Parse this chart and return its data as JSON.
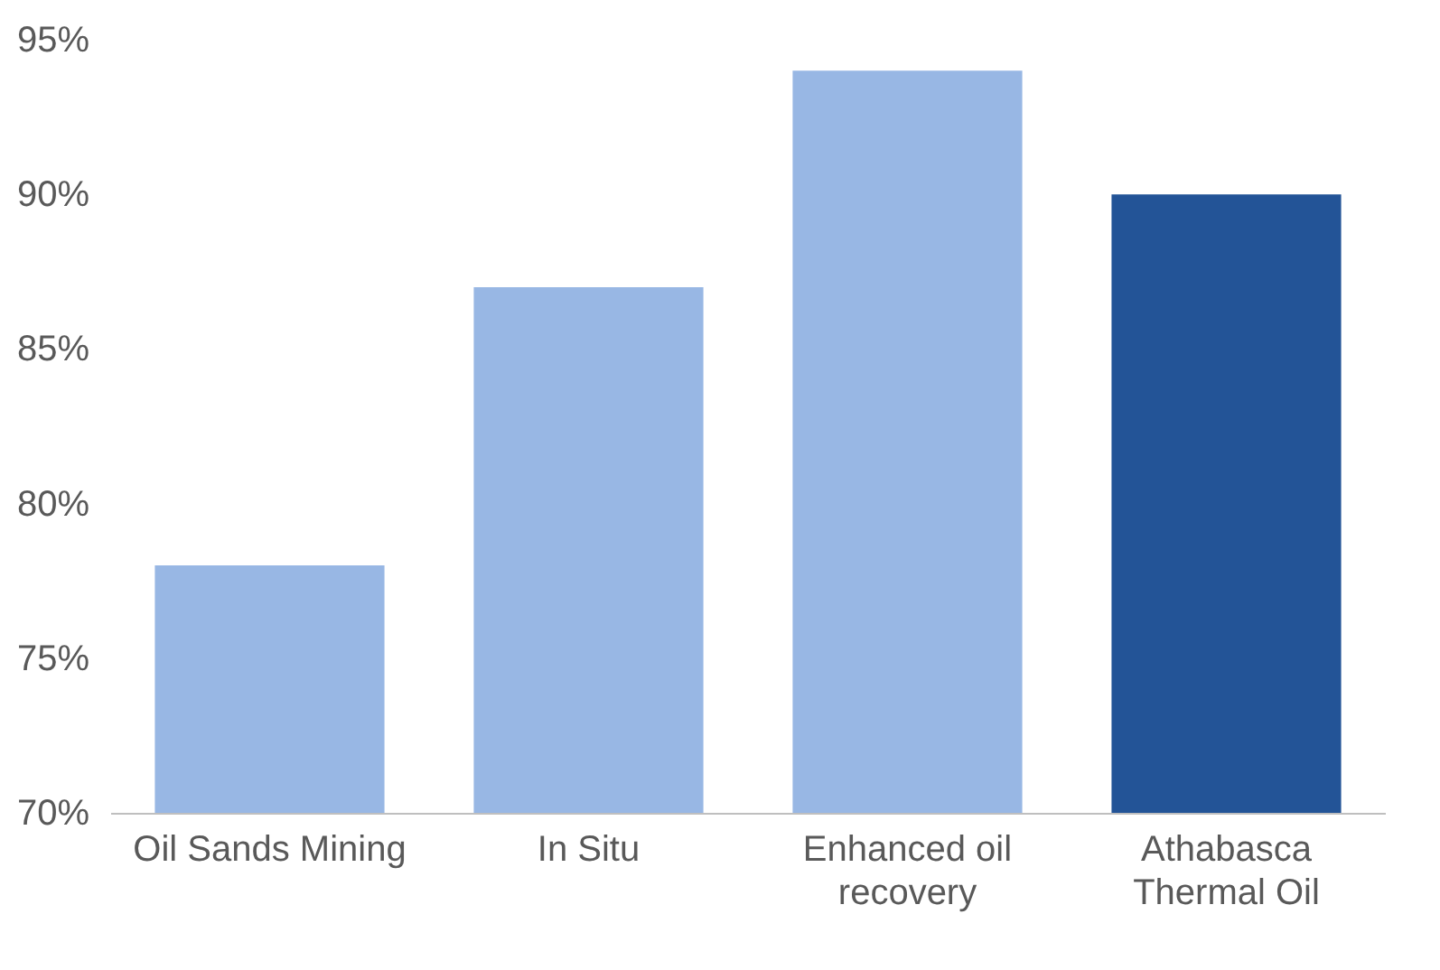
{
  "chart_data": {
    "type": "bar",
    "categories": [
      "Oil Sands Mining",
      "In Situ",
      "Enhanced  oil recovery",
      "Athabasca Thermal Oil"
    ],
    "values": [
      78,
      87,
      94,
      90
    ],
    "colors": [
      "#98b7e4",
      "#98b7e4",
      "#98b7e4",
      "#235497"
    ],
    "ylim": [
      70,
      95
    ],
    "yticks": [
      {
        "value": 70,
        "label": "70%"
      },
      {
        "value": 75,
        "label": "75%"
      },
      {
        "value": 80,
        "label": "80%"
      },
      {
        "value": 85,
        "label": "85%"
      },
      {
        "value": 90,
        "label": "90%"
      },
      {
        "value": 95,
        "label": "95%"
      }
    ],
    "grid": false
  }
}
